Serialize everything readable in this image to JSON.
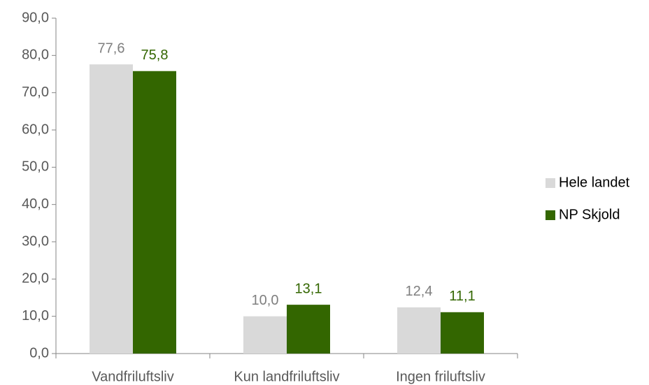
{
  "chart_data": {
    "type": "bar",
    "categories": [
      "Vandfriluftsliv",
      "Kun landfriluftsliv",
      "Ingen friluftsliv"
    ],
    "series": [
      {
        "name": "Hele landet",
        "color": "#d9d9d9",
        "label_color": "#7f7f7f",
        "values": [
          77.6,
          10.0,
          12.4
        ],
        "value_labels": [
          "77,6",
          "10,0",
          "12,4"
        ]
      },
      {
        "name": "NP Skjold",
        "color": "#336600",
        "label_color": "#336600",
        "values": [
          75.8,
          13.1,
          11.1
        ],
        "value_labels": [
          "75,8",
          "13,1",
          "11,1"
        ]
      }
    ],
    "ylim": [
      0,
      90
    ],
    "yticks": [
      {
        "value": 0,
        "label": "0,0"
      },
      {
        "value": 10,
        "label": "10,0"
      },
      {
        "value": 20,
        "label": "20,0"
      },
      {
        "value": 30,
        "label": "30,0"
      },
      {
        "value": 40,
        "label": "40,0"
      },
      {
        "value": 50,
        "label": "50,0"
      },
      {
        "value": 60,
        "label": "60,0"
      },
      {
        "value": 70,
        "label": "70,0"
      },
      {
        "value": 80,
        "label": "80,0"
      },
      {
        "value": 90,
        "label": "90,0"
      }
    ],
    "legend": "right",
    "grid": false
  }
}
